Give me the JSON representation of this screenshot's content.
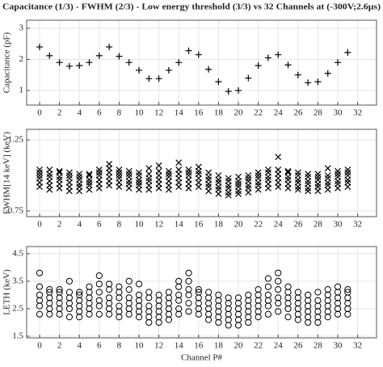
{
  "chart_data": [
    {
      "type": "scatter",
      "title": "Capacitance (1/3) - FWHM (2/3) - Low energy threshold (3/3) vs 32 Channels at (-300V;2.6µs)",
      "ylabel": "Capacitance (pF)",
      "marker": "+",
      "color": "#000000",
      "grid": true,
      "x": [
        0,
        1,
        2,
        3,
        4,
        5,
        6,
        7,
        8,
        9,
        10,
        11,
        12,
        13,
        14,
        15,
        16,
        17,
        18,
        19,
        20,
        21,
        22,
        23,
        24,
        25,
        26,
        27,
        28,
        29,
        30,
        31
      ],
      "values": [
        2.4,
        2.12,
        1.9,
        1.78,
        1.8,
        1.9,
        2.12,
        2.4,
        2.1,
        1.9,
        1.65,
        1.38,
        1.38,
        1.65,
        1.9,
        2.28,
        2.15,
        1.68,
        1.28,
        0.97,
        1.0,
        1.4,
        1.8,
        2.05,
        2.15,
        1.82,
        1.5,
        1.25,
        1.28,
        1.55,
        1.9,
        2.22
      ],
      "xlim": [
        -1.3,
        33.9
      ],
      "xticks": [
        0,
        2,
        4,
        6,
        8,
        10,
        12,
        14,
        16,
        18,
        20,
        22,
        24,
        26,
        28,
        30,
        32
      ],
      "ylim": [
        0.53,
        3.26
      ],
      "yticks": [
        1,
        2,
        3
      ]
    },
    {
      "type": "scatter",
      "ylabel": "FWHM[14 keV] (keV)",
      "marker": "x",
      "color": "#000000",
      "grid": true,
      "x": [
        0,
        1,
        2,
        3,
        4,
        5,
        6,
        7,
        8,
        9,
        10,
        11,
        12,
        13,
        14,
        15,
        16,
        17,
        18,
        19,
        20,
        21,
        22,
        23,
        24,
        25,
        26,
        27,
        28,
        29,
        30,
        31
      ],
      "values": [
        [
          0.92,
          0.95,
          0.98,
          1.0,
          1.02,
          1.04
        ],
        [
          0.9,
          0.93,
          0.96,
          0.99,
          1.01,
          1.04
        ],
        [
          0.91,
          0.94,
          0.97,
          0.99,
          1.02,
          1.03
        ],
        [
          0.89,
          0.92,
          0.95,
          0.98,
          1.0,
          1.02
        ],
        [
          0.89,
          0.92,
          0.94,
          0.97,
          0.99,
          1.01
        ],
        [
          0.9,
          0.93,
          0.95,
          0.97,
          1.0,
          1.01
        ],
        [
          0.91,
          0.94,
          0.97,
          1.0,
          1.02,
          1.04
        ],
        [
          0.93,
          0.96,
          0.99,
          1.02,
          1.05,
          1.08
        ],
        [
          0.92,
          0.95,
          0.98,
          1.0,
          1.02,
          1.04
        ],
        [
          0.91,
          0.94,
          0.96,
          0.99,
          1.01,
          1.03
        ],
        [
          0.9,
          0.93,
          0.95,
          0.97,
          1.0,
          1.02
        ],
        [
          0.9,
          0.93,
          0.96,
          0.98,
          1.01,
          1.05
        ],
        [
          0.91,
          0.94,
          0.97,
          1.0,
          1.03,
          1.07
        ],
        [
          0.9,
          0.93,
          0.96,
          0.99,
          1.01,
          1.03
        ],
        [
          0.92,
          0.95,
          0.98,
          1.01,
          1.04,
          1.09
        ],
        [
          0.91,
          0.94,
          0.97,
          1.0,
          1.02,
          1.04
        ],
        [
          0.92,
          0.95,
          0.98,
          1.01,
          1.03,
          1.06
        ],
        [
          0.89,
          0.92,
          0.94,
          0.97,
          0.99,
          1.02
        ],
        [
          0.87,
          0.9,
          0.92,
          0.95,
          0.97,
          1.0
        ],
        [
          0.86,
          0.88,
          0.91,
          0.93,
          0.96,
          0.98
        ],
        [
          0.87,
          0.89,
          0.92,
          0.94,
          0.96,
          0.99
        ],
        [
          0.88,
          0.91,
          0.93,
          0.96,
          0.98,
          1.0
        ],
        [
          0.9,
          0.93,
          0.95,
          0.98,
          1.0,
          1.02
        ],
        [
          0.91,
          0.94,
          0.97,
          0.99,
          1.02,
          1.04
        ],
        [
          0.92,
          0.95,
          0.98,
          1.01,
          1.04,
          1.13
        ],
        [
          0.91,
          0.94,
          0.97,
          0.99,
          1.02,
          1.03
        ],
        [
          0.9,
          0.92,
          0.95,
          0.97,
          1.0,
          1.02
        ],
        [
          0.89,
          0.91,
          0.94,
          0.96,
          0.99,
          1.01
        ],
        [
          0.89,
          0.92,
          0.94,
          0.97,
          0.99,
          1.01
        ],
        [
          0.9,
          0.93,
          0.95,
          0.98,
          1.0,
          1.05
        ],
        [
          0.91,
          0.94,
          0.96,
          0.99,
          1.01,
          1.03
        ],
        [
          0.92,
          0.95,
          0.97,
          1.0,
          1.02,
          1.04
        ]
      ],
      "xlim": [
        -1.3,
        33.9
      ],
      "xticks": [
        0,
        2,
        4,
        6,
        8,
        10,
        12,
        14,
        16,
        18,
        20,
        22,
        24,
        26,
        28,
        30,
        32
      ],
      "ylim": [
        0.71,
        1.324
      ],
      "yticks": [
        0.75,
        1.25
      ]
    },
    {
      "type": "scatter",
      "ylabel": "LETH (keV)",
      "xlabel": "Channel P#",
      "marker": "o",
      "color": "#000000",
      "grid": true,
      "x": [
        0,
        1,
        2,
        3,
        4,
        5,
        6,
        7,
        8,
        9,
        10,
        11,
        12,
        13,
        14,
        15,
        16,
        17,
        18,
        19,
        20,
        21,
        22,
        23,
        24,
        25,
        26,
        27,
        28,
        29,
        30,
        31
      ],
      "values": [
        [
          2.3,
          2.6,
          2.8,
          3.0,
          3.3,
          3.8
        ],
        [
          2.3,
          2.5,
          2.7,
          2.9,
          3.1,
          3.2
        ],
        [
          2.3,
          2.5,
          2.7,
          2.9,
          3.1,
          3.2
        ],
        [
          2.2,
          2.5,
          2.7,
          2.9,
          3.1,
          3.5
        ],
        [
          2.2,
          2.4,
          2.6,
          2.8,
          3.0,
          3.1
        ],
        [
          2.3,
          2.5,
          2.7,
          2.9,
          3.1,
          3.3
        ],
        [
          2.3,
          2.6,
          2.8,
          3.1,
          3.4,
          3.7
        ],
        [
          2.3,
          2.5,
          2.7,
          2.9,
          3.2,
          3.4
        ],
        [
          2.2,
          2.4,
          2.6,
          2.9,
          3.1,
          3.3
        ],
        [
          2.3,
          2.5,
          2.7,
          2.9,
          3.2,
          3.5
        ],
        [
          2.2,
          2.4,
          2.6,
          2.8,
          3.0,
          3.4
        ],
        [
          2.0,
          2.2,
          2.4,
          2.6,
          2.9,
          3.1
        ],
        [
          2.0,
          2.2,
          2.4,
          2.6,
          2.8,
          3.0
        ],
        [
          2.1,
          2.3,
          2.5,
          2.7,
          2.9,
          3.1
        ],
        [
          2.3,
          2.5,
          2.8,
          3.0,
          3.3,
          3.5
        ],
        [
          2.4,
          2.7,
          3.0,
          3.2,
          3.5,
          3.8
        ],
        [
          2.3,
          2.5,
          2.7,
          2.9,
          3.1,
          3.2
        ],
        [
          2.1,
          2.3,
          2.5,
          2.7,
          2.9,
          3.1
        ],
        [
          2.0,
          2.2,
          2.4,
          2.6,
          2.8,
          3.0
        ],
        [
          1.9,
          2.1,
          2.3,
          2.5,
          2.7,
          2.9
        ],
        [
          1.9,
          2.1,
          2.3,
          2.5,
          2.7,
          2.9
        ],
        [
          2.0,
          2.2,
          2.4,
          2.6,
          2.8,
          3.0
        ],
        [
          2.2,
          2.4,
          2.6,
          2.8,
          3.0,
          3.2
        ],
        [
          2.3,
          2.6,
          2.8,
          3.0,
          3.3,
          3.6
        ],
        [
          2.4,
          2.7,
          2.9,
          3.2,
          3.5,
          3.8
        ],
        [
          2.2,
          2.5,
          2.7,
          2.9,
          3.1,
          3.3
        ],
        [
          2.1,
          2.3,
          2.5,
          2.7,
          2.9,
          3.1
        ],
        [
          2.0,
          2.2,
          2.4,
          2.6,
          2.8,
          3.0
        ],
        [
          2.0,
          2.2,
          2.4,
          2.6,
          2.8,
          3.1
        ],
        [
          2.2,
          2.4,
          2.6,
          2.8,
          3.0,
          3.2
        ],
        [
          2.3,
          2.5,
          2.7,
          2.9,
          3.1,
          3.3
        ],
        [
          2.3,
          2.5,
          2.7,
          2.9,
          3.1,
          3.2
        ]
      ],
      "xlim": [
        -1.3,
        33.9
      ],
      "xticks": [
        0,
        2,
        4,
        6,
        8,
        10,
        12,
        14,
        16,
        18,
        20,
        22,
        24,
        26,
        28,
        30,
        32
      ],
      "ylim": [
        1.44,
        4.76
      ],
      "yticks": [
        1.5,
        2.5,
        3.5,
        4.5
      ]
    }
  ]
}
